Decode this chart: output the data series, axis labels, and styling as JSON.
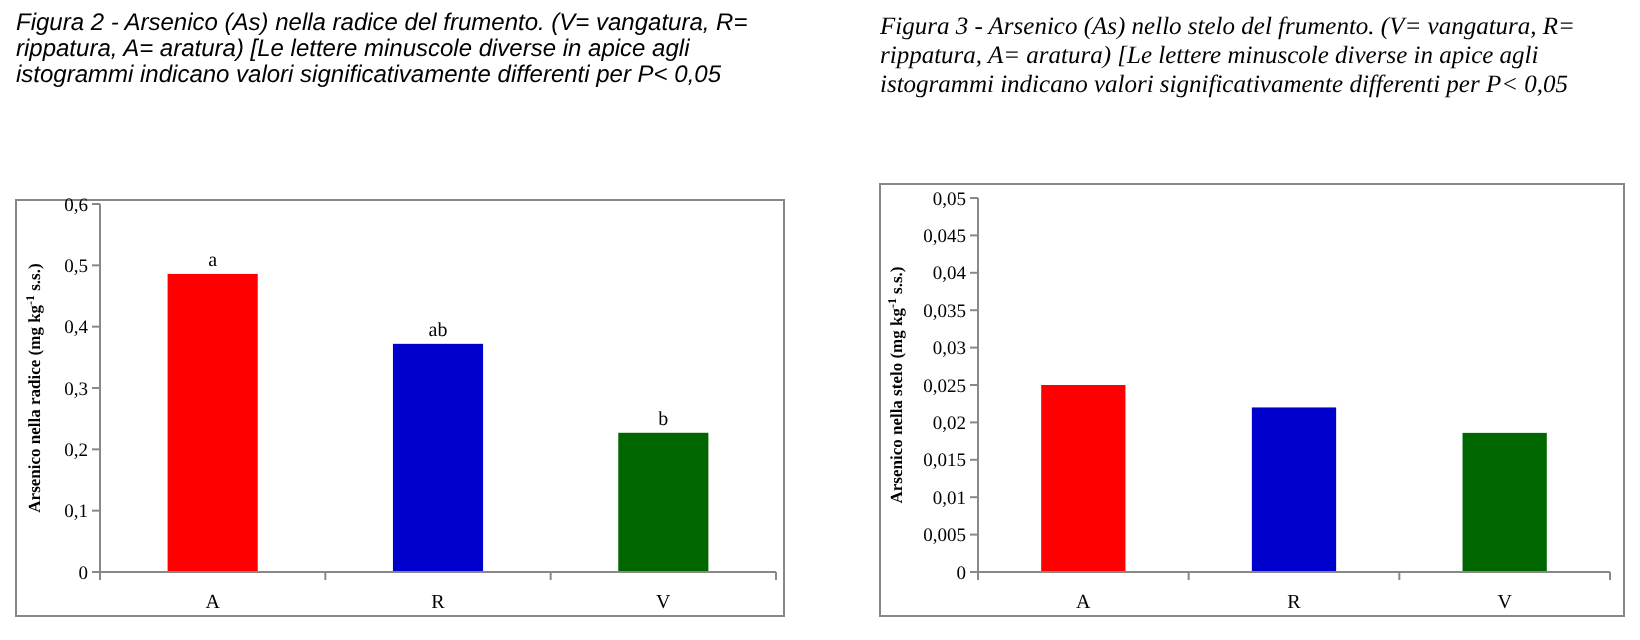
{
  "chart_data": [
    {
      "type": "bar",
      "title": "Figura 2 - Arsenico (As) nella radice del frumento. (V= vangatura, R= rippatura, A= aratura) [Le lettere minuscole diverse in apice agli istogrammi indicano valori significativamente differenti per P< 0,05",
      "ylabel": "Arsenico nella radice (mg kg$^{-1}$ s.s.)",
      "categories": [
        "A",
        "R",
        "V"
      ],
      "values": [
        0.486,
        0.372,
        0.227
      ],
      "colors": [
        "#ff0000",
        "#0000cc",
        "#006600"
      ],
      "value_labels": [
        "a",
        "ab",
        "b"
      ],
      "ylim": [
        0,
        0.6
      ],
      "yticks": [
        0,
        {
          "value": 0.1,
          "label": "0,1"
        },
        {
          "value": 0.2,
          "label": "0,2"
        },
        {
          "value": 0.3,
          "label": "0,3"
        },
        {
          "value": 0.4,
          "label": "0,4"
        },
        {
          "value": 0.5,
          "label": "0,5"
        },
        {
          "value": 0.6,
          "label": "0,6"
        }
      ]
    },
    {
      "type": "bar",
      "title": "Figura 3 - Arsenico (As) nello stelo del frumento. (V= vangatura, R= rippatura, A= aratura) [Le lettere minuscole diverse in apice agli istogrammi indicano valori significativamente differenti per P< 0,05",
      "ylabel": "Arsenico nella stelo (mg kg$^{-1}$ s.s.)",
      "categories": [
        "A",
        "R",
        "V"
      ],
      "values": [
        0.025,
        0.022,
        0.0186
      ],
      "colors": [
        "#ff0000",
        "#0000cc",
        "#006600"
      ],
      "ylim": [
        0,
        0.05
      ],
      "yticks": [
        0,
        {
          "value": 0.005,
          "label": "0,005"
        },
        {
          "value": 0.01,
          "label": "0,01"
        },
        {
          "value": 0.015,
          "label": "0,015"
        },
        {
          "value": 0.02,
          "label": "0,02"
        },
        {
          "value": 0.025,
          "label": "0,025"
        },
        {
          "value": 0.03,
          "label": "0,03"
        },
        {
          "value": 0.035,
          "label": "0,035"
        },
        {
          "value": 0.04,
          "label": "0,04"
        },
        {
          "value": 0.045,
          "label": "0,045"
        },
        {
          "value": 0.05,
          "label": "0,05"
        }
      ]
    }
  ]
}
